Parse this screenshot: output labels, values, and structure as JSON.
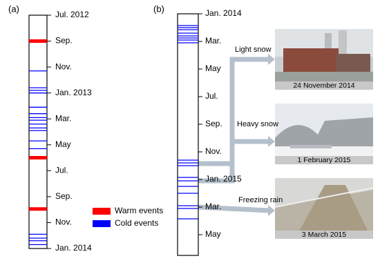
{
  "chart_data": [
    {
      "type": "timeline",
      "panel_label": "(a)",
      "ylim": [
        0,
        18
      ],
      "yticks": [
        {
          "value": 0,
          "label": "Jul. 2012"
        },
        {
          "value": 2,
          "label": "Sep."
        },
        {
          "value": 4,
          "label": "Nov."
        },
        {
          "value": 6,
          "label": "Jan. 2013"
        },
        {
          "value": 8,
          "label": "Mar."
        },
        {
          "value": 10,
          "label": "May"
        },
        {
          "value": 12,
          "label": "Jul."
        },
        {
          "value": 14,
          "label": "Sep."
        },
        {
          "value": 16,
          "label": "Nov."
        },
        {
          "value": 18,
          "label": "Jan. 2014"
        }
      ],
      "series": [
        {
          "name": "Warm events",
          "color": "#ff0000",
          "values": [
            2.0,
            11.0,
            14.95
          ]
        },
        {
          "name": "Cold events",
          "color": "#0000ff",
          "values": [
            4.3,
            5.6,
            5.8,
            6.0,
            7.1,
            7.6,
            7.9,
            8.1,
            8.4,
            8.7,
            8.9,
            9.7,
            10.3,
            16.9,
            17.2,
            17.4,
            17.7
          ]
        }
      ]
    },
    {
      "type": "timeline",
      "panel_label": "(b)",
      "ylim": [
        0,
        17.5
      ],
      "yticks": [
        {
          "value": 0,
          "label": "Jan. 2014"
        },
        {
          "value": 2,
          "label": "Mar."
        },
        {
          "value": 4,
          "label": "May"
        },
        {
          "value": 6,
          "label": "Jul."
        },
        {
          "value": 8,
          "label": "Sep."
        },
        {
          "value": 10,
          "label": "Nov."
        },
        {
          "value": 12,
          "label": "Jan. 2015"
        },
        {
          "value": 14,
          "label": "Mar."
        },
        {
          "value": 16,
          "label": "May"
        }
      ],
      "series": [
        {
          "color": "#0000ff",
          "values": [
            0.85,
            1.0,
            1.15,
            1.4,
            1.6,
            1.75,
            1.9,
            2.1,
            10.6,
            10.8,
            11.0,
            11.85,
            12.1,
            12.5,
            13.0,
            13.9,
            14.1,
            14.85
          ]
        }
      ],
      "photos": [
        {
          "label": "Light snow",
          "caption": "24 November 2014"
        },
        {
          "label": "Heavy snow",
          "caption": "1 February 2015"
        },
        {
          "label": "Freezing rain",
          "caption": "3 March 2015"
        }
      ]
    }
  ]
}
